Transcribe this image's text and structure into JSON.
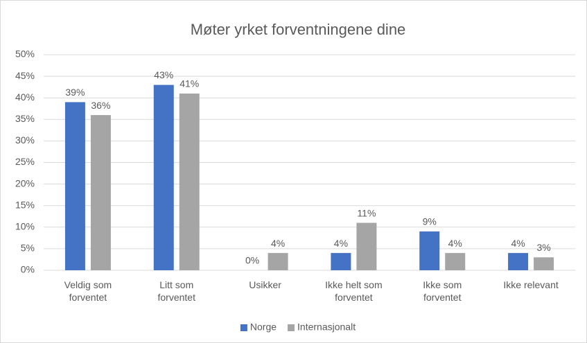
{
  "chart_data": {
    "type": "bar",
    "title": "Møter yrket forventningene dine",
    "categories": [
      "Veldig som forventet",
      "Litt som forventet",
      "Usikker",
      "Ikke helt som forventet",
      "Ikke som forventet",
      "Ikke relevant"
    ],
    "series": [
      {
        "name": "Norge",
        "color": "#4472c4",
        "values": [
          39,
          43,
          0,
          4,
          9,
          4
        ],
        "value_labels": [
          "39%",
          "43%",
          "0%",
          "4%",
          "9%",
          "4%"
        ]
      },
      {
        "name": "Internasjonalt",
        "color": "#a5a5a5",
        "values": [
          36,
          41,
          4,
          11,
          4,
          3
        ],
        "value_labels": [
          "36%",
          "41%",
          "4%",
          "11%",
          "4%",
          "3%"
        ]
      }
    ],
    "ylim": [
      0,
      50
    ],
    "yticks": [
      {
        "value": 0,
        "label": "0%"
      },
      {
        "value": 5,
        "label": "5%"
      },
      {
        "value": 10,
        "label": "10%"
      },
      {
        "value": 15,
        "label": "15%"
      },
      {
        "value": 20,
        "label": "20%"
      },
      {
        "value": 25,
        "label": "25%"
      },
      {
        "value": 30,
        "label": "30%"
      },
      {
        "value": 35,
        "label": "35%"
      },
      {
        "value": 40,
        "label": "40%"
      },
      {
        "value": 45,
        "label": "45%"
      },
      {
        "value": 50,
        "label": "50%"
      }
    ],
    "grid": true,
    "legend": "bottom"
  }
}
